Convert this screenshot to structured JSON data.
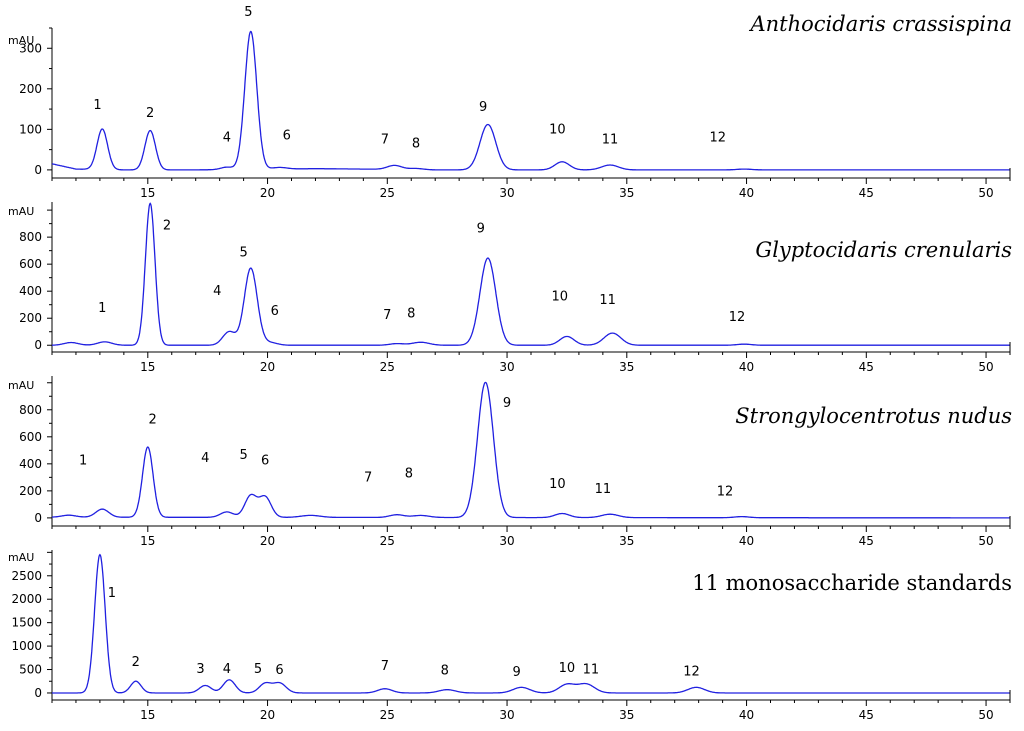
{
  "chart_data": [
    {
      "type": "line",
      "title": "Anthocidaris crassispina",
      "title_italic": true,
      "ylabel": "mAU",
      "xlim": [
        11,
        51
      ],
      "ylim": [
        -20,
        350
      ],
      "yticks": [
        0,
        100,
        200,
        300
      ],
      "xticks": [
        15,
        20,
        25,
        30,
        35,
        40,
        45,
        50
      ],
      "baseline": [
        [
          11,
          15
        ],
        [
          12,
          2
        ],
        [
          14,
          0
        ],
        [
          17,
          0
        ],
        [
          22,
          3
        ],
        [
          24,
          2
        ],
        [
          27,
          0
        ],
        [
          31,
          0
        ],
        [
          37,
          0
        ],
        [
          41,
          0
        ],
        [
          45,
          0
        ],
        [
          51,
          0
        ]
      ],
      "peaks": [
        {
          "label": "1",
          "x": 13.1,
          "height": 100,
          "width": 0.22
        },
        {
          "label": "2",
          "x": 15.1,
          "height": 97,
          "width": 0.22
        },
        {
          "label": "4",
          "x": 18.3,
          "height": 6,
          "width": 0.25
        },
        {
          "label": "5",
          "x": 19.3,
          "height": 340,
          "width": 0.25
        },
        {
          "label": "6",
          "x": 20.5,
          "height": 4,
          "width": 0.3
        },
        {
          "label": "7",
          "x": 25.3,
          "height": 10,
          "width": 0.3
        },
        {
          "label": "8",
          "x": 26.2,
          "height": 3,
          "width": 0.3
        },
        {
          "label": "9",
          "x": 29.2,
          "height": 112,
          "width": 0.33
        },
        {
          "label": "10",
          "x": 32.3,
          "height": 20,
          "width": 0.3
        },
        {
          "label": "11",
          "x": 34.3,
          "height": 12,
          "width": 0.35
        },
        {
          "label": "12",
          "x": 39.9,
          "height": 2,
          "width": 0.3
        }
      ],
      "peak_labels": [
        {
          "text": "1",
          "x": 12.9,
          "y": 150
        },
        {
          "text": "2",
          "x": 15.1,
          "y": 130
        },
        {
          "text": "4",
          "x": 18.3,
          "y": 70
        },
        {
          "text": "5",
          "x": 19.2,
          "y": 380
        },
        {
          "text": "6",
          "x": 20.8,
          "y": 75
        },
        {
          "text": "7",
          "x": 24.9,
          "y": 65
        },
        {
          "text": "8",
          "x": 26.2,
          "y": 55
        },
        {
          "text": "9",
          "x": 29.0,
          "y": 145
        },
        {
          "text": "10",
          "x": 32.1,
          "y": 90
        },
        {
          "text": "11",
          "x": 34.3,
          "y": 65
        },
        {
          "text": "12",
          "x": 38.8,
          "y": 70
        }
      ]
    },
    {
      "type": "line",
      "title": "Glyptocidaris crenularis",
      "title_italic": true,
      "ylabel": "mAU",
      "xlim": [
        11,
        51
      ],
      "ylim": [
        -50,
        1060
      ],
      "yticks": [
        0,
        200,
        400,
        600,
        800
      ],
      "xticks": [
        15,
        20,
        25,
        30,
        35,
        40,
        45,
        50
      ],
      "baseline": [
        [
          11,
          0
        ],
        [
          51,
          0
        ]
      ],
      "peaks": [
        {
          "label": "0",
          "x": 11.8,
          "height": 20,
          "width": 0.3
        },
        {
          "label": "1",
          "x": 13.2,
          "height": 25,
          "width": 0.3
        },
        {
          "label": "2",
          "x": 15.1,
          "height": 1050,
          "width": 0.2
        },
        {
          "label": "4",
          "x": 18.4,
          "height": 100,
          "width": 0.27
        },
        {
          "label": "5",
          "x": 19.3,
          "height": 570,
          "width": 0.27
        },
        {
          "label": "6",
          "x": 20.1,
          "height": 20,
          "width": 0.3
        },
        {
          "label": "7",
          "x": 25.4,
          "height": 12,
          "width": 0.3
        },
        {
          "label": "8",
          "x": 26.4,
          "height": 22,
          "width": 0.35
        },
        {
          "label": "9",
          "x": 29.2,
          "height": 645,
          "width": 0.33
        },
        {
          "label": "10",
          "x": 32.5,
          "height": 65,
          "width": 0.3
        },
        {
          "label": "11",
          "x": 34.4,
          "height": 90,
          "width": 0.35
        },
        {
          "label": "12",
          "x": 39.9,
          "height": 8,
          "width": 0.3
        }
      ],
      "peak_labels": [
        {
          "text": "1",
          "x": 13.1,
          "y": 245
        },
        {
          "text": "2",
          "x": 15.8,
          "y": 855
        },
        {
          "text": "4",
          "x": 17.9,
          "y": 370
        },
        {
          "text": "5",
          "x": 19.0,
          "y": 655
        },
        {
          "text": "6",
          "x": 20.3,
          "y": 225
        },
        {
          "text": "7",
          "x": 25.0,
          "y": 195
        },
        {
          "text": "8",
          "x": 26.0,
          "y": 205
        },
        {
          "text": "9",
          "x": 28.9,
          "y": 835
        },
        {
          "text": "10",
          "x": 32.2,
          "y": 330
        },
        {
          "text": "11",
          "x": 34.2,
          "y": 305
        },
        {
          "text": "12",
          "x": 39.6,
          "y": 180
        }
      ]
    },
    {
      "type": "line",
      "title": "Strongylocentrotus nudus",
      "title_italic": true,
      "ylabel": "mAU",
      "xlim": [
        11,
        51
      ],
      "ylim": [
        -60,
        1050
      ],
      "yticks": [
        0,
        200,
        400,
        600,
        800
      ],
      "xticks": [
        15,
        20,
        25,
        30,
        35,
        40,
        45,
        50
      ],
      "baseline": [
        [
          11,
          5
        ],
        [
          51,
          0
        ]
      ],
      "peaks": [
        {
          "label": "0",
          "x": 11.7,
          "height": 15,
          "width": 0.3
        },
        {
          "label": "1",
          "x": 13.1,
          "height": 60,
          "width": 0.27
        },
        {
          "label": "2",
          "x": 15.0,
          "height": 520,
          "width": 0.22
        },
        {
          "label": "4",
          "x": 18.3,
          "height": 40,
          "width": 0.27
        },
        {
          "label": "5",
          "x": 19.3,
          "height": 160,
          "width": 0.25
        },
        {
          "label": "6",
          "x": 19.9,
          "height": 150,
          "width": 0.25
        },
        {
          "label": "x",
          "x": 21.8,
          "height": 15,
          "width": 0.4
        },
        {
          "label": "7",
          "x": 25.4,
          "height": 20,
          "width": 0.3
        },
        {
          "label": "8",
          "x": 26.4,
          "height": 15,
          "width": 0.35
        },
        {
          "label": "9",
          "x": 29.1,
          "height": 1000,
          "width": 0.33
        },
        {
          "label": "10",
          "x": 32.3,
          "height": 30,
          "width": 0.3
        },
        {
          "label": "11",
          "x": 34.3,
          "height": 25,
          "width": 0.35
        },
        {
          "label": "12",
          "x": 39.8,
          "height": 8,
          "width": 0.3
        }
      ],
      "peak_labels": [
        {
          "text": "1",
          "x": 12.3,
          "y": 395
        },
        {
          "text": "2",
          "x": 15.2,
          "y": 700
        },
        {
          "text": "4",
          "x": 17.4,
          "y": 415
        },
        {
          "text": "5",
          "x": 19.0,
          "y": 435
        },
        {
          "text": "6",
          "x": 19.9,
          "y": 395
        },
        {
          "text": "7",
          "x": 24.2,
          "y": 270
        },
        {
          "text": "8",
          "x": 25.9,
          "y": 300
        },
        {
          "text": "9",
          "x": 30.0,
          "y": 820
        },
        {
          "text": "10",
          "x": 32.1,
          "y": 220
        },
        {
          "text": "11",
          "x": 34.0,
          "y": 185
        },
        {
          "text": "12",
          "x": 39.1,
          "y": 165
        }
      ]
    },
    {
      "type": "line",
      "title": "11 monosaccharide standards",
      "title_italic": false,
      "ylabel": "mAU",
      "xlim": [
        11,
        51
      ],
      "ylim": [
        -150,
        3050
      ],
      "yticks": [
        0,
        500,
        1000,
        1500,
        2000,
        2500
      ],
      "xticks": [
        15,
        20,
        25,
        30,
        35,
        40,
        45,
        50
      ],
      "baseline": [
        [
          11,
          0
        ],
        [
          51,
          0
        ]
      ],
      "peaks": [
        {
          "label": "1",
          "x": 13.0,
          "height": 2950,
          "width": 0.22
        },
        {
          "label": "2",
          "x": 14.5,
          "height": 250,
          "width": 0.22
        },
        {
          "label": "3",
          "x": 17.4,
          "height": 160,
          "width": 0.25
        },
        {
          "label": "4",
          "x": 18.4,
          "height": 280,
          "width": 0.25
        },
        {
          "label": "5",
          "x": 19.9,
          "height": 200,
          "width": 0.25
        },
        {
          "label": "6",
          "x": 20.5,
          "height": 210,
          "width": 0.27
        },
        {
          "label": "7",
          "x": 24.9,
          "height": 90,
          "width": 0.3
        },
        {
          "label": "8",
          "x": 27.5,
          "height": 70,
          "width": 0.35
        },
        {
          "label": "9",
          "x": 30.6,
          "height": 120,
          "width": 0.35
        },
        {
          "label": "10",
          "x": 32.5,
          "height": 180,
          "width": 0.33
        },
        {
          "label": "11",
          "x": 33.3,
          "height": 190,
          "width": 0.35
        },
        {
          "label": "12",
          "x": 37.9,
          "height": 120,
          "width": 0.35
        }
      ],
      "peak_labels": [
        {
          "text": "1",
          "x": 13.5,
          "y": 2050
        },
        {
          "text": "2",
          "x": 14.5,
          "y": 580
        },
        {
          "text": "3",
          "x": 17.2,
          "y": 430
        },
        {
          "text": "4",
          "x": 18.3,
          "y": 430
        },
        {
          "text": "5",
          "x": 19.6,
          "y": 430
        },
        {
          "text": "6",
          "x": 20.5,
          "y": 410
        },
        {
          "text": "7",
          "x": 24.9,
          "y": 490
        },
        {
          "text": "8",
          "x": 27.4,
          "y": 390
        },
        {
          "text": "9",
          "x": 30.4,
          "y": 360
        },
        {
          "text": "10",
          "x": 32.5,
          "y": 450
        },
        {
          "text": "11",
          "x": 33.5,
          "y": 420
        },
        {
          "text": "12",
          "x": 37.7,
          "y": 370
        }
      ]
    }
  ]
}
